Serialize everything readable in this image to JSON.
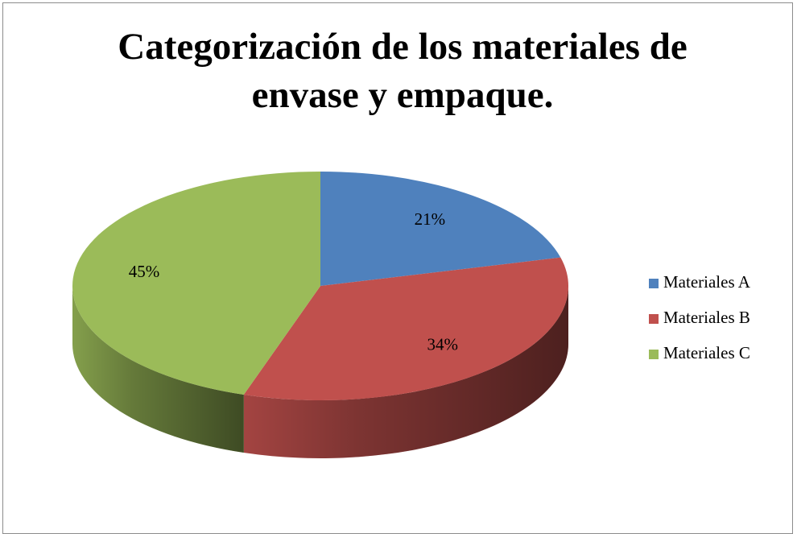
{
  "chart_data": {
    "type": "pie",
    "title": "Categorización de los materiales de envase y empaque.",
    "categories": [
      "Materiales A",
      "Materiales B",
      "Materiales C"
    ],
    "values": [
      21,
      34,
      45
    ],
    "value_labels": [
      "21%",
      "34%",
      "45%"
    ],
    "colors": [
      "#4f81bd",
      "#c0504d",
      "#9bbb59"
    ],
    "legend": "right"
  }
}
